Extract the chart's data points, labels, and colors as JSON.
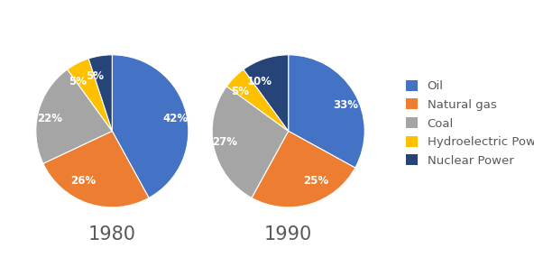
{
  "chart1": {
    "title": "1980",
    "values": [
      42,
      26,
      22,
      5,
      5
    ],
    "labels": [
      "42%",
      "26%",
      "22%",
      "5%",
      "5%"
    ]
  },
  "chart2": {
    "title": "1990",
    "values": [
      33,
      25,
      27,
      5,
      10
    ],
    "labels": [
      "33%",
      "25%",
      "27%",
      "5%",
      "10%"
    ]
  },
  "categories": [
    "Oil",
    "Natural gas",
    "Coal",
    "Hydroelectric Power",
    "Nuclear Power"
  ],
  "colors": [
    "#4472C4",
    "#ED7D31",
    "#A5A5A5",
    "#FFC000",
    "#264478"
  ],
  "background_color": "#FFFFFF",
  "title_fontsize": 15,
  "label_fontsize": 8.5,
  "legend_fontsize": 9.5
}
